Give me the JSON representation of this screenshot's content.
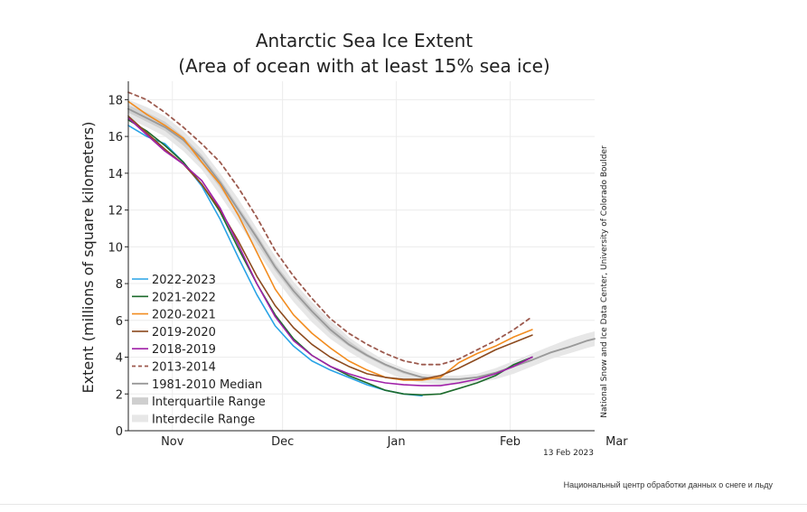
{
  "page": {
    "caption": "Национальный центр обработки данных о снеге и льду"
  },
  "chart_data": {
    "type": "line",
    "title": "Antarctic Sea Ice Extent",
    "subtitle": "(Area of ocean with at least 15% sea ice)",
    "ylabel": "Extent (millions of square kilometers)",
    "xlabel": "",
    "ylim": [
      0,
      19
    ],
    "yticks": [
      0,
      2,
      4,
      6,
      8,
      10,
      12,
      14,
      16,
      18
    ],
    "x_unit": "days since Oct 20",
    "xlim": [
      0,
      127
    ],
    "xticks": [
      {
        "label": "Nov",
        "x": 12
      },
      {
        "label": "Dec",
        "x": 42
      },
      {
        "label": "Jan",
        "x": 73
      },
      {
        "label": "Feb",
        "x": 104
      },
      {
        "label": "Mar",
        "x": 133
      }
    ],
    "grid": true,
    "source_credit": "National Snow and Ice Data Center, University of Colorado Boulder",
    "date_stamp": "13 Feb 2023",
    "x": [
      0,
      5,
      10,
      15,
      20,
      25,
      30,
      35,
      40,
      45,
      50,
      55,
      60,
      65,
      70,
      75,
      80,
      85,
      90,
      95,
      100,
      105,
      110,
      115,
      120,
      125,
      127
    ],
    "bands": [
      {
        "name": "Interdecile Range",
        "color": "#e7e7e7",
        "lower": [
          17.0,
          16.5,
          16.0,
          15.2,
          14.2,
          12.8,
          11.3,
          9.8,
          8.3,
          7.0,
          5.9,
          5.0,
          4.3,
          3.7,
          3.2,
          2.8,
          2.6,
          2.5,
          2.5,
          2.6,
          2.8,
          3.1,
          3.5,
          3.9,
          4.2,
          4.5,
          4.6
        ],
        "upper": [
          18.0,
          17.6,
          17.1,
          16.3,
          15.3,
          14.0,
          12.6,
          11.0,
          9.5,
          8.1,
          7.0,
          6.0,
          5.1,
          4.4,
          3.8,
          3.4,
          3.1,
          3.0,
          3.0,
          3.1,
          3.4,
          3.8,
          4.2,
          4.6,
          5.0,
          5.3,
          5.4
        ]
      },
      {
        "name": "Interquartile Range",
        "color": "#cfcfcf",
        "lower": [
          17.3,
          16.8,
          16.3,
          15.5,
          14.5,
          13.2,
          11.7,
          10.2,
          8.7,
          7.4,
          6.3,
          5.3,
          4.6,
          4.0,
          3.5,
          3.1,
          2.85,
          2.75,
          2.75,
          2.85,
          3.1,
          3.45,
          3.8,
          4.2,
          4.5,
          4.85,
          4.95
        ],
        "upper": [
          17.7,
          17.3,
          16.8,
          16.0,
          15.0,
          13.7,
          12.2,
          10.7,
          9.1,
          7.8,
          6.7,
          5.7,
          4.9,
          4.2,
          3.65,
          3.25,
          2.95,
          2.85,
          2.85,
          2.95,
          3.2,
          3.55,
          3.9,
          4.3,
          4.6,
          4.95,
          5.05
        ]
      }
    ],
    "series": [
      {
        "name": "2022-2023",
        "color": "#29a3e6",
        "dash": false,
        "width": 1.6,
        "values": [
          16.6,
          16.0,
          15.6,
          14.6,
          13.3,
          11.5,
          9.4,
          7.4,
          5.7,
          4.6,
          3.8,
          3.3,
          2.9,
          2.5,
          2.2,
          2.0,
          1.9,
          null,
          null,
          null,
          null,
          null,
          null,
          null,
          null,
          null,
          null
        ]
      },
      {
        "name": "2021-2022",
        "color": "#1d6b2c",
        "dash": false,
        "width": 1.6,
        "values": [
          16.9,
          16.3,
          15.5,
          14.6,
          13.4,
          11.9,
          9.9,
          8.0,
          6.3,
          5.0,
          4.1,
          3.5,
          3.0,
          2.6,
          2.2,
          2.0,
          1.95,
          2.0,
          2.3,
          2.6,
          3.0,
          3.6,
          4.0,
          null,
          null,
          null,
          null
        ]
      },
      {
        "name": "2020-2021",
        "color": "#f28c1f",
        "dash": false,
        "width": 1.6,
        "values": [
          17.9,
          17.2,
          16.6,
          15.9,
          14.6,
          13.4,
          11.7,
          9.7,
          7.7,
          6.3,
          5.3,
          4.5,
          3.8,
          3.3,
          2.9,
          2.75,
          2.75,
          2.9,
          3.7,
          4.2,
          4.6,
          5.1,
          5.5,
          null,
          null,
          null,
          null
        ]
      },
      {
        "name": "2019-2020",
        "color": "#8c4a1e",
        "dash": false,
        "width": 1.6,
        "values": [
          17.1,
          16.2,
          15.3,
          14.5,
          13.4,
          12.0,
          10.3,
          8.4,
          6.8,
          5.6,
          4.7,
          4.0,
          3.5,
          3.1,
          2.9,
          2.8,
          2.8,
          3.0,
          3.4,
          3.9,
          4.4,
          4.8,
          5.2,
          null,
          null,
          null,
          null
        ]
      },
      {
        "name": "2018-2019",
        "color": "#a020a8",
        "dash": false,
        "width": 1.6,
        "values": [
          17.0,
          16.1,
          15.2,
          14.5,
          13.6,
          12.1,
          10.1,
          8.0,
          6.2,
          4.9,
          4.1,
          3.5,
          3.1,
          2.8,
          2.6,
          2.5,
          2.45,
          2.45,
          2.6,
          2.8,
          3.1,
          3.5,
          4.0,
          null,
          null,
          null,
          null
        ]
      },
      {
        "name": "2013-2014",
        "color": "#9c5a4e",
        "dash": true,
        "width": 1.8,
        "values": [
          18.4,
          18.0,
          17.3,
          16.5,
          15.6,
          14.6,
          13.2,
          11.6,
          9.8,
          8.4,
          7.2,
          6.1,
          5.3,
          4.7,
          4.2,
          3.8,
          3.6,
          3.6,
          3.9,
          4.4,
          4.9,
          5.5,
          6.2,
          null,
          null,
          null,
          null
        ]
      },
      {
        "name": "1981-2010 Median",
        "color": "#999999",
        "dash": false,
        "width": 1.8,
        "values": [
          17.5,
          17.0,
          16.5,
          15.8,
          14.8,
          13.5,
          12.0,
          10.5,
          8.9,
          7.6,
          6.5,
          5.5,
          4.7,
          4.1,
          3.6,
          3.2,
          2.9,
          2.8,
          2.8,
          2.9,
          3.15,
          3.5,
          3.85,
          4.25,
          4.55,
          4.9,
          5.0
        ]
      }
    ],
    "legend": {
      "placement": "lower-left",
      "entries": [
        "2022-2023",
        "2021-2022",
        "2020-2021",
        "2019-2020",
        "2018-2019",
        "2013-2014",
        "1981-2010 Median",
        "Interquartile Range",
        "Interdecile Range"
      ]
    }
  }
}
